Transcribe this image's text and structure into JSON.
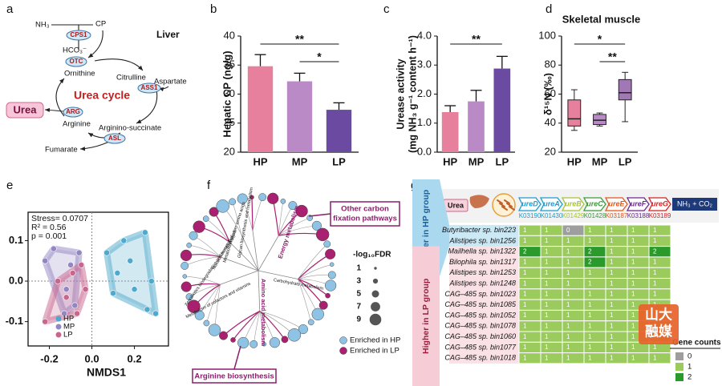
{
  "panels": [
    "a",
    "b",
    "c",
    "d",
    "e",
    "f",
    "g"
  ],
  "urea_cycle": {
    "nh3": "NH₃",
    "cp": "CP",
    "cps1": "CPS1",
    "hco3": "HCO₃⁻",
    "liver": "Liver",
    "otc": "OTC",
    "ornithine": "Ornithine",
    "citrulline": "Citrulline",
    "aspartate": "Aspartate",
    "title": "Urea cycle",
    "urea": "Urea",
    "arg": "ARG",
    "ass1": "ASS1",
    "arginine": "Arginine",
    "argininosuccinate": "Arginino-succinate",
    "asl": "ASL",
    "fumarate": "Fumarate"
  },
  "chart_data": [
    {
      "type": "bar",
      "ylabel": "Hepatic CP (ng/g)",
      "categories": [
        "HP",
        "MP",
        "LP"
      ],
      "values": [
        34.8,
        32.2,
        27.3
      ],
      "errors": [
        2.0,
        1.4,
        1.2
      ],
      "colors": [
        "#e6809c",
        "#b98ac6",
        "#6b4ba2"
      ],
      "ylim": [
        20,
        40
      ],
      "yticks": [
        20,
        25,
        30,
        35,
        40
      ],
      "annotations": [
        {
          "text": "**",
          "between": [
            "HP",
            "LP"
          ]
        },
        {
          "text": "*",
          "between": [
            "MP",
            "LP"
          ]
        }
      ]
    },
    {
      "type": "bar",
      "ylabel": [
        "Urease activity",
        "(mg NH₃ g⁻¹ content h⁻¹)"
      ],
      "categories": [
        "HP",
        "MP",
        "LP"
      ],
      "values": [
        1.38,
        1.75,
        2.88
      ],
      "errors": [
        0.22,
        0.38,
        0.42
      ],
      "colors": [
        "#e6809c",
        "#b98ac6",
        "#6b4ba2"
      ],
      "ylim": [
        0,
        4
      ],
      "yticks": [
        {
          "value": 0,
          "label": "0.0"
        },
        {
          "value": 1,
          "label": "1.0"
        },
        {
          "value": 2,
          "label": "2.0"
        },
        {
          "value": 3,
          "label": "3.0"
        },
        {
          "value": 4,
          "label": "4.0"
        }
      ],
      "annotations": [
        {
          "text": "**",
          "between": [
            "HP",
            "LP"
          ]
        }
      ]
    },
    {
      "type": "box",
      "title": "Skeletal muscle",
      "ylabel": "δ¹⁵N (‰)",
      "categories": [
        "HP",
        "MP",
        "LP"
      ],
      "colors": [
        "#e6809c",
        "#b98ac6",
        "#a078b4"
      ],
      "boxes": [
        {
          "min": 35,
          "q1": 38,
          "median": 43,
          "q3": 56,
          "max": 63
        },
        {
          "min": 38,
          "q1": 39,
          "median": 42,
          "q3": 46,
          "max": 47
        },
        {
          "min": 41,
          "q1": 56,
          "median": 61,
          "q3": 70,
          "max": 75
        }
      ],
      "ylim": [
        20,
        100
      ],
      "yticks": [
        20,
        40,
        60,
        80,
        100
      ],
      "annotations": [
        {
          "text": "*",
          "between": [
            "HP",
            "LP"
          ]
        },
        {
          "text": "**",
          "between": [
            "MP",
            "LP"
          ]
        }
      ]
    },
    {
      "type": "scatter",
      "xlabel": "NMDS1",
      "xlim": [
        -0.3,
        0.36
      ],
      "ylim": [
        -0.16,
        0.17
      ],
      "xticks": [
        -0.2,
        {
          "value": 0,
          "label": "0.0"
        },
        0.2
      ],
      "yticks": [
        -0.1,
        {
          "value": 0,
          "label": "0.0"
        },
        0.1
      ],
      "zero_lines": true,
      "legend": "lower left",
      "annotations": [
        "Stress= 0.0707",
        "R² = 0.56",
        "p = 0.001"
      ],
      "series": [
        {
          "name": "HP",
          "color": "#4fa9cc",
          "x": [
            0.07,
            0.1,
            0.12,
            0.15,
            0.18,
            0.2,
            0.25,
            0.26,
            0.3,
            0.28
          ],
          "values": [
            0.07,
            -0.03,
            0.02,
            0.1,
            0.05,
            -0.02,
            0.12,
            -0.07,
            -0.08,
            0.0
          ]
        },
        {
          "name": "MP",
          "color": "#9486c2",
          "x": [
            -0.22,
            -0.18,
            -0.1,
            -0.12,
            -0.06,
            -0.08,
            -0.13
          ],
          "values": [
            0.05,
            0.08,
            0.04,
            -0.02,
            0.07,
            -0.06,
            -0.08
          ]
        },
        {
          "name": "LP",
          "color": "#c9668e",
          "x": [
            -0.22,
            -0.16,
            -0.12,
            -0.09,
            -0.05,
            -0.03,
            -0.07
          ],
          "values": [
            -0.1,
            0.0,
            -0.04,
            0.02,
            0.04,
            -0.02,
            -0.08
          ]
        }
      ]
    }
  ],
  "network": {
    "callouts": [
      [
        "Other carbon",
        "fixation pathways"
      ],
      [
        "Arginine biosynthesis"
      ]
    ],
    "hubs": [
      "Energy metabolism",
      "Amino acid metabolism",
      "Carbohydrate metabolism",
      "Metabolism of cofactors and vitamins",
      "Xenobiotics biodegradation and metabolism",
      "Nucleotide metabolism",
      "Metabolism of other amino acids",
      "Glycan biosynthesis and metabolism"
    ],
    "size_title": "-log₁₀FDR",
    "sizes": [
      1,
      3,
      5,
      7,
      9
    ],
    "enriched": [
      {
        "label": "Enriched in HP",
        "color": "#8ec3e6"
      },
      {
        "label": "Enriched in LP",
        "color": "#a8206f"
      }
    ]
  },
  "heatmap": {
    "substrate": "Urea",
    "product": "NH₃ + CO₂",
    "genes": [
      {
        "name": "ureD",
        "ko": "K03190",
        "color": "#1f9ccc"
      },
      {
        "name": "ureA",
        "ko": "K01430",
        "color": "#1f9ccc"
      },
      {
        "name": "ureB",
        "ko": "K01429",
        "color": "#a6c43a"
      },
      {
        "name": "ureC",
        "ko": "K01428",
        "color": "#3c9a3c"
      },
      {
        "name": "ureE",
        "ko": "K03187",
        "color": "#e0581c"
      },
      {
        "name": "ureF",
        "ko": "K03188",
        "color": "#6a2a8a"
      },
      {
        "name": "ureG",
        "ko": "K03189",
        "color": "#d02424"
      }
    ],
    "groups": [
      {
        "label": "Higher in HP group",
        "color": "#a9d8ef",
        "rows": [
          {
            "name": "Butyribacter sp. bin223",
            "counts": [
              1,
              1,
              0,
              1,
              1,
              1,
              1
            ]
          },
          {
            "name": "Alistipes sp. bin1256",
            "counts": [
              1,
              1,
              1,
              1,
              1,
              1,
              1
            ]
          }
        ]
      },
      {
        "label": "Higher in LP group",
        "color": "#f6cdd6",
        "rows": [
          {
            "name": "Mailhella sp. bin1322",
            "counts": [
              2,
              1,
              1,
              2,
              1,
              1,
              2
            ]
          },
          {
            "name": "Bilophila sp. bin1317",
            "counts": [
              1,
              1,
              1,
              2,
              1,
              1,
              1
            ]
          },
          {
            "name": "Alistipes sp. bin1253",
            "counts": [
              1,
              1,
              1,
              1,
              1,
              1,
              1
            ]
          },
          {
            "name": "Alistipes sp. bin1248",
            "counts": [
              1,
              1,
              1,
              1,
              1,
              1,
              1
            ]
          },
          {
            "name": "CAG–485 sp. bin1023",
            "counts": [
              1,
              1,
              1,
              1,
              1,
              1,
              1
            ]
          },
          {
            "name": "CAG–485 sp. bin1085",
            "counts": [
              1,
              1,
              1,
              1,
              1,
              1,
              1
            ]
          },
          {
            "name": "CAG–485 sp. bin1052",
            "counts": [
              1,
              1,
              1,
              1,
              1,
              1,
              1
            ]
          },
          {
            "name": "CAG–485 sp. bin1078",
            "counts": [
              1,
              1,
              1,
              1,
              1,
              1,
              1
            ]
          },
          {
            "name": "CAG–485 sp. bin1060",
            "counts": [
              1,
              1,
              1,
              1,
              1,
              1,
              1
            ]
          },
          {
            "name": "CAG–485 sp. bin1077",
            "counts": [
              1,
              1,
              1,
              1,
              1,
              1,
              1
            ]
          },
          {
            "name": "CAG–485 sp. bin1018",
            "counts": [
              1,
              1,
              1,
              1,
              1,
              1,
              1
            ]
          }
        ]
      }
    ],
    "legend": {
      "title": "Gene counts",
      "levels": [
        0,
        1,
        2
      ],
      "colors": [
        "#9e9e9e",
        "#9acb5c",
        "#2a9a2a"
      ]
    },
    "watermark": [
      "山大",
      "融媒"
    ]
  }
}
